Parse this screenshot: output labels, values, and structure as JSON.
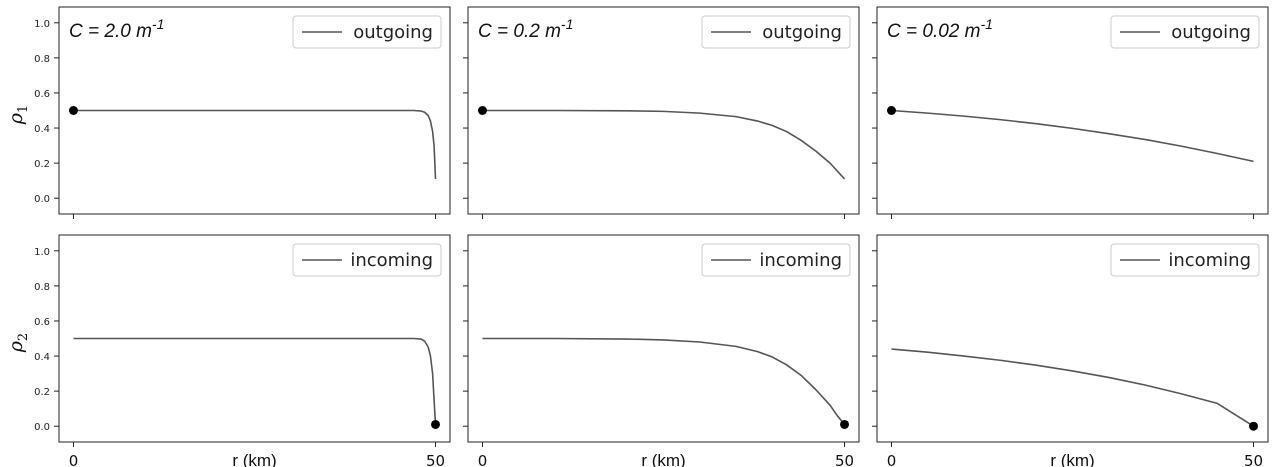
{
  "chart_data": [
    {
      "type": "line",
      "row": 0,
      "col": 0,
      "annotation": "C = 2.0 m",
      "annotation_sup": "-1",
      "ylabel": "ρ",
      "ylabel_sub": "1",
      "xlabel": "",
      "legend": "outgoing",
      "legend_position": "top-right",
      "xlim": [
        -2,
        52
      ],
      "ylim": [
        -0.09,
        1.09
      ],
      "yticks": [
        "0.0",
        "0.2",
        "0.4",
        "0.6",
        "0.8",
        "1.0"
      ],
      "xticks": [],
      "series": [
        {
          "x": [
            0,
            10,
            20,
            30,
            40,
            45,
            47,
            48,
            48.5,
            49,
            49.3,
            49.6,
            49.8,
            50
          ],
          "y": [
            0.5,
            0.5,
            0.5,
            0.5,
            0.5,
            0.5,
            0.5,
            0.497,
            0.49,
            0.47,
            0.44,
            0.38,
            0.3,
            0.11
          ]
        }
      ],
      "marker": {
        "x": 0,
        "y": 0.5
      }
    },
    {
      "type": "line",
      "row": 0,
      "col": 1,
      "annotation": "C = 0.2 m",
      "annotation_sup": "-1",
      "ylabel": "",
      "ylabel_sub": "",
      "xlabel": "",
      "legend": "outgoing",
      "legend_position": "top-right",
      "xlim": [
        -2,
        52
      ],
      "ylim": [
        -0.09,
        1.09
      ],
      "yticks": [],
      "xticks": [],
      "series": [
        {
          "x": [
            0,
            10,
            20,
            25,
            30,
            35,
            38,
            40,
            42,
            44,
            46,
            48,
            50
          ],
          "y": [
            0.5,
            0.5,
            0.498,
            0.495,
            0.485,
            0.465,
            0.44,
            0.415,
            0.38,
            0.33,
            0.27,
            0.2,
            0.11
          ]
        }
      ],
      "marker": {
        "x": 0,
        "y": 0.5
      }
    },
    {
      "type": "line",
      "row": 0,
      "col": 2,
      "annotation": "C = 0.02 m",
      "annotation_sup": "-1",
      "ylabel": "",
      "ylabel_sub": "",
      "xlabel": "",
      "legend": "outgoing",
      "legend_position": "top-right",
      "xlim": [
        -2,
        52
      ],
      "ylim": [
        -0.09,
        1.09
      ],
      "yticks": [],
      "xticks": [],
      "series": [
        {
          "x": [
            0,
            5,
            10,
            15,
            20,
            25,
            30,
            35,
            40,
            45,
            50
          ],
          "y": [
            0.5,
            0.485,
            0.468,
            0.448,
            0.425,
            0.398,
            0.368,
            0.335,
            0.297,
            0.255,
            0.21
          ]
        }
      ],
      "marker": {
        "x": 0,
        "y": 0.5
      }
    },
    {
      "type": "line",
      "row": 1,
      "col": 0,
      "annotation": "",
      "annotation_sup": "",
      "ylabel": "ρ",
      "ylabel_sub": "2",
      "xlabel": "r (km)",
      "legend": "incoming",
      "legend_position": "top-right",
      "xlim": [
        -2,
        52
      ],
      "ylim": [
        -0.09,
        1.09
      ],
      "yticks": [
        "0.0",
        "0.2",
        "0.4",
        "0.6",
        "0.8",
        "1.0"
      ],
      "xticks": [
        "0",
        "50"
      ],
      "series": [
        {
          "x": [
            0,
            10,
            20,
            30,
            40,
            45,
            47,
            48,
            48.5,
            49,
            49.3,
            49.6,
            49.8,
            50
          ],
          "y": [
            0.5,
            0.5,
            0.5,
            0.5,
            0.5,
            0.5,
            0.5,
            0.497,
            0.485,
            0.45,
            0.4,
            0.3,
            0.15,
            0.01
          ]
        }
      ],
      "marker": {
        "x": 50,
        "y": 0.01
      }
    },
    {
      "type": "line",
      "row": 1,
      "col": 1,
      "annotation": "",
      "annotation_sup": "",
      "ylabel": "",
      "ylabel_sub": "",
      "xlabel": "r (km)",
      "legend": "incoming",
      "legend_position": "top-right",
      "xlim": [
        -2,
        52
      ],
      "ylim": [
        -0.09,
        1.09
      ],
      "yticks": [],
      "xticks": [
        "0",
        "50"
      ],
      "series": [
        {
          "x": [
            0,
            10,
            20,
            25,
            30,
            35,
            38,
            40,
            42,
            44,
            46,
            48,
            49,
            50
          ],
          "y": [
            0.5,
            0.5,
            0.497,
            0.492,
            0.48,
            0.455,
            0.425,
            0.395,
            0.35,
            0.29,
            0.21,
            0.12,
            0.06,
            0.01
          ]
        }
      ],
      "marker": {
        "x": 50,
        "y": 0.01
      }
    },
    {
      "type": "line",
      "row": 1,
      "col": 2,
      "annotation": "",
      "annotation_sup": "",
      "ylabel": "",
      "ylabel_sub": "",
      "xlabel": "r (km)",
      "legend": "incoming",
      "legend_position": "top-right",
      "xlim": [
        -2,
        52
      ],
      "ylim": [
        -0.09,
        1.09
      ],
      "yticks": [],
      "xticks": [
        "0",
        "50"
      ],
      "series": [
        {
          "x": [
            0,
            5,
            10,
            15,
            20,
            25,
            30,
            35,
            40,
            45,
            50
          ],
          "y": [
            0.44,
            0.422,
            0.4,
            0.376,
            0.348,
            0.315,
            0.278,
            0.235,
            0.185,
            0.13,
            0.0
          ]
        }
      ],
      "marker": {
        "x": 50,
        "y": 0.0
      }
    }
  ],
  "style": {
    "line_color": "#555555",
    "axes_color": "#222222",
    "marker_color": "#000000"
  }
}
